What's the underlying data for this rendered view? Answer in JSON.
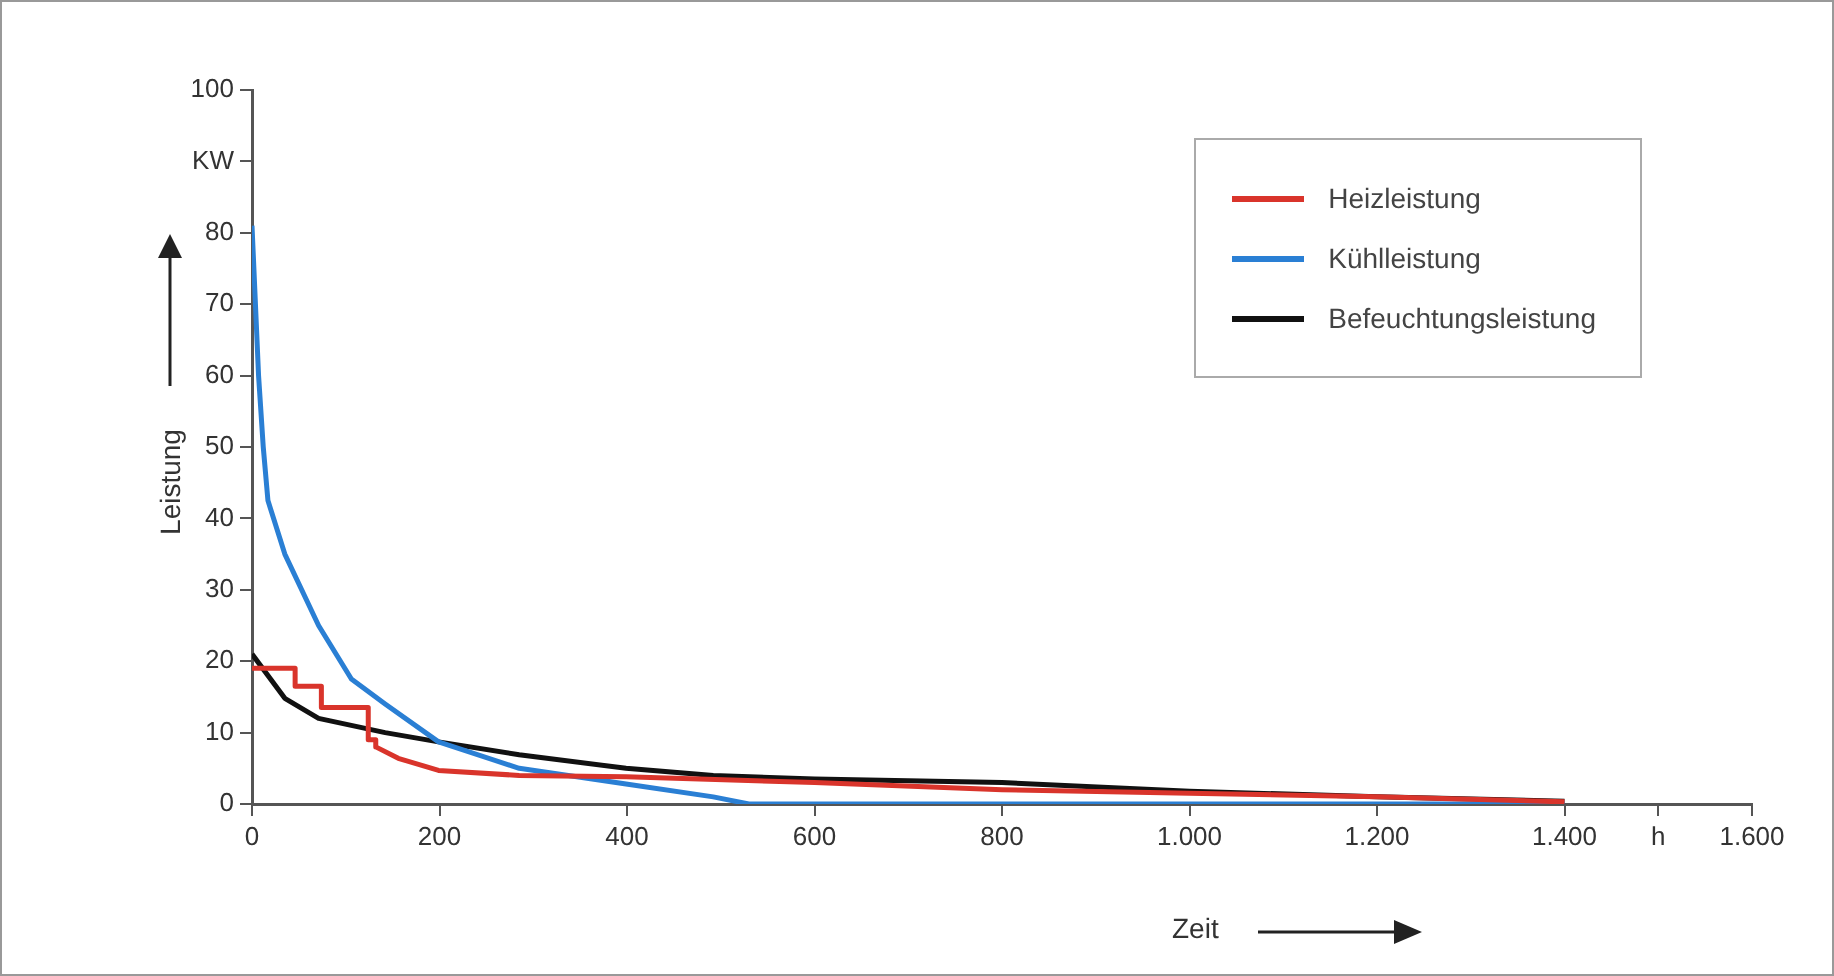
{
  "chart_data": {
    "type": "line",
    "xlabel": "Zeit",
    "ylabel": "Leistung",
    "xlim": [
      0,
      1600
    ],
    "xticks": [
      0,
      200,
      400,
      600,
      800,
      {
        "value": 1000,
        "label": "1.000"
      },
      {
        "value": 1200,
        "label": "1.200"
      },
      {
        "value": 1400,
        "label": "1.400"
      },
      {
        "value": 1500,
        "label": "h"
      },
      {
        "value": 1600,
        "label": "1.600"
      }
    ],
    "ylim": [
      0,
      100
    ],
    "yticks": [
      0,
      10,
      20,
      30,
      40,
      50,
      60,
      70,
      80,
      {
        "value": 90,
        "label": "KW"
      },
      100
    ],
    "grid": false,
    "legend": "top right",
    "marker": "none",
    "line_style": "solid",
    "series": [
      {
        "name": "Heizleistung",
        "color": "#d9342b",
        "x": [
          0,
          46,
          46,
          74,
          74,
          124,
          124,
          132,
          132,
          156,
          199,
          285,
          399,
          600,
          800,
          1000,
          1200,
          1400
        ],
        "values": [
          19,
          19,
          16.5,
          16.5,
          13.5,
          13.5,
          9,
          9,
          8,
          6.4,
          4.7,
          4,
          3.8,
          3,
          2,
          1.5,
          1,
          0.3
        ]
      },
      {
        "name": "Kühlleistung",
        "color": "#2a7fd4",
        "x": [
          0,
          7,
          12,
          17,
          35,
          71,
          106,
          142,
          199,
          285,
          399,
          492,
          530,
          800,
          1000,
          1200,
          1400
        ],
        "values": [
          81,
          60,
          50,
          42.5,
          35,
          25,
          17.5,
          14,
          8.7,
          5,
          2.8,
          1,
          0,
          0,
          0,
          0,
          0
        ]
      },
      {
        "name": "Befeuchtungsleistung",
        "color": "#111111",
        "x": [
          0,
          35,
          71,
          142,
          199,
          285,
          399,
          492,
          600,
          800,
          1000,
          1200,
          1400
        ],
        "values": [
          21,
          14.8,
          12,
          10,
          8.7,
          6.9,
          5,
          4,
          3.5,
          3,
          1.8,
          1,
          0.4
        ]
      }
    ]
  }
}
